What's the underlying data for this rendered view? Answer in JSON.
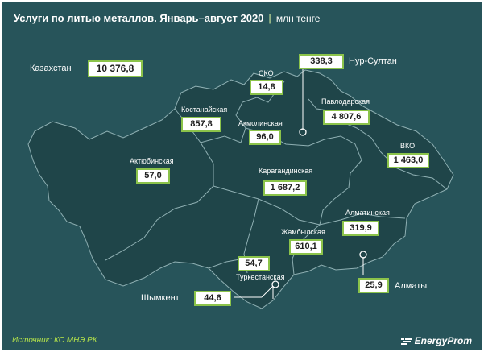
{
  "title": "Услуги по литью металлов. Январь–август 2020",
  "separator": "|",
  "unit": "млн тенге",
  "total": {
    "label": "Казахстан",
    "value": "10 376,8"
  },
  "regions": [
    {
      "id": "sko",
      "label": "СКО",
      "value": "14,8"
    },
    {
      "id": "nur-sultan",
      "label": "Нур-Султан",
      "value": "338,3"
    },
    {
      "id": "kostanay",
      "label": "Костанайская",
      "value": "857,8"
    },
    {
      "id": "pavlodar",
      "label": "Павлодарская",
      "value": "4 807,6"
    },
    {
      "id": "akmola",
      "label": "Акмолинская",
      "value": "96,0"
    },
    {
      "id": "vko",
      "label": "ВКО",
      "value": "1 463,0"
    },
    {
      "id": "aktobe",
      "label": "Актюбинская",
      "value": "57,0"
    },
    {
      "id": "karaganda",
      "label": "Карагандинская",
      "value": "1 687,2"
    },
    {
      "id": "almaty-region",
      "label": "Алматинская",
      "value": "319,9"
    },
    {
      "id": "zhambyl",
      "label": "Жамбылская",
      "value": "610,1"
    },
    {
      "id": "turkestan",
      "label": "Туркестанская",
      "value": "54,7"
    },
    {
      "id": "shymkent",
      "label": "Шымкент",
      "value": "44,6"
    },
    {
      "id": "almaty",
      "label": "Алматы",
      "value": "25,9"
    }
  ],
  "footer": {
    "source": "Источник: КС МНЭ РК",
    "brand": "EnergyProm"
  },
  "colors": {
    "background": "#27545a",
    "land": "#1f4549",
    "border": "#8fb0b3",
    "accent": "#8bc34a",
    "source_text": "#b5e34a"
  }
}
